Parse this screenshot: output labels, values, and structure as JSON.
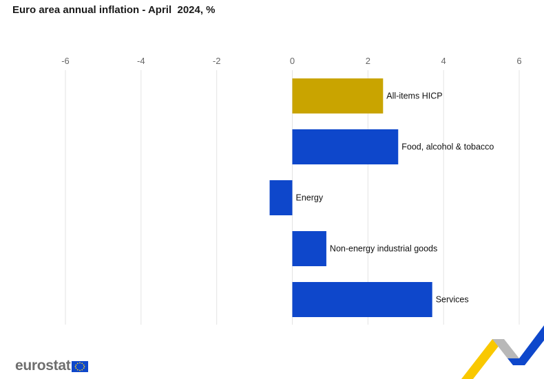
{
  "title": "Euro area annual inflation - April  2024, %",
  "brand": {
    "name": "eurostat",
    "logo_icon": "eu-flag-icon"
  },
  "colors": {
    "headline": "#c9a400",
    "component": "#0e47cb",
    "grid": "#e3e3e3",
    "tick": "#666666"
  },
  "chart_data": {
    "type": "bar",
    "orientation": "horizontal",
    "categories": [
      "All-items HICP",
      "Food, alcohol & tobacco",
      "Energy",
      "Non-energy industrial goods",
      "Services"
    ],
    "values": [
      2.4,
      2.8,
      -0.6,
      0.9,
      3.7
    ],
    "highlight_index": 0,
    "xlim": [
      -6,
      6
    ],
    "xticks": [
      "-6",
      "-4",
      "-2",
      "0",
      "2",
      "4",
      "6"
    ],
    "xtick_values": [
      -6,
      -4,
      -2,
      0,
      2,
      4,
      6
    ],
    "grid": true,
    "axis_position": "top"
  }
}
